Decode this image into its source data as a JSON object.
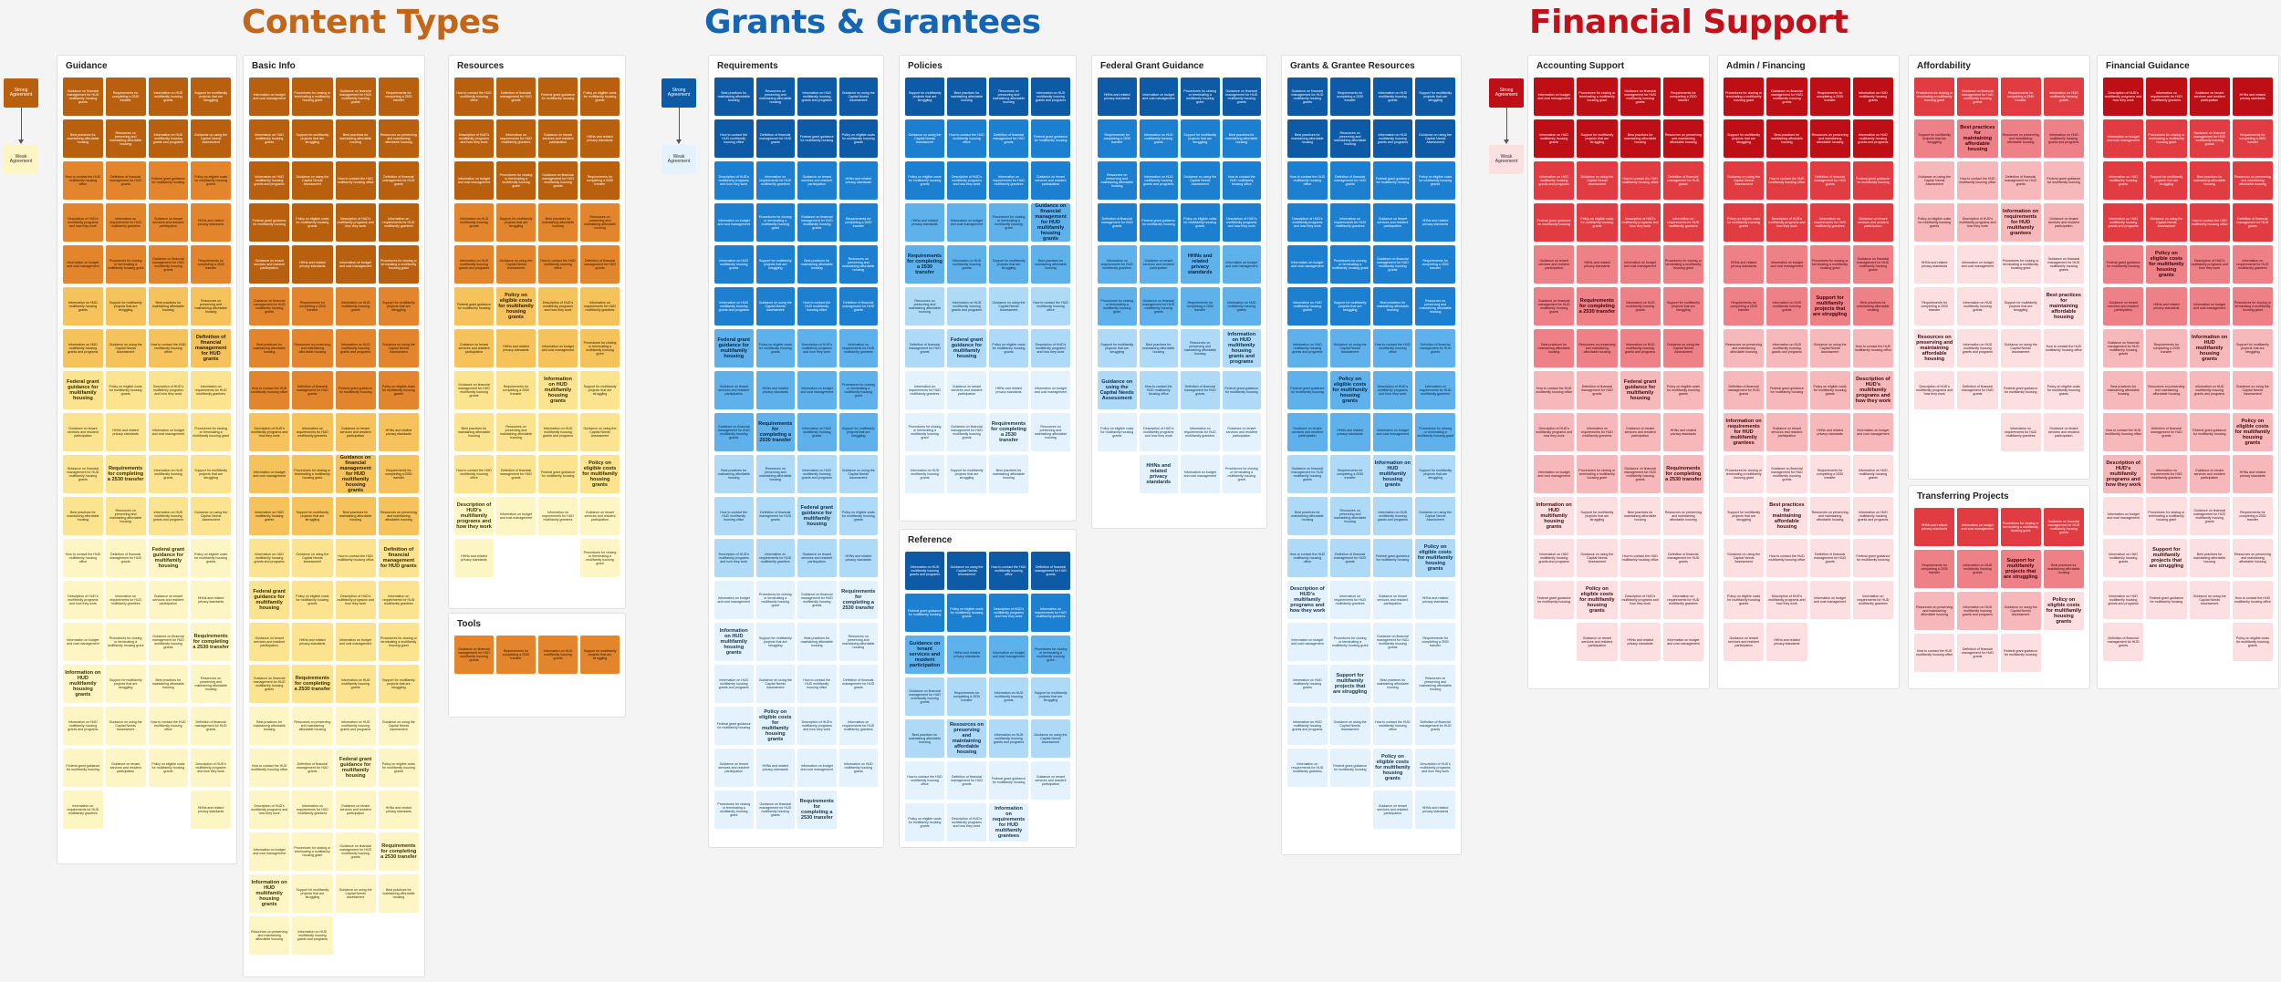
{
  "titles": {
    "content_types": "Content Types",
    "grants": "Grants & Grantees",
    "financial": "Financial Support"
  },
  "legend": {
    "strong": "Strong Agreement",
    "weak": "Weak Agreement"
  },
  "colors": {
    "orange": "#c2661a",
    "blue": "#1565b2",
    "red": "#c1111b"
  },
  "notes": [
    "Guidance on financial management for HUD multifamily housing grants",
    "Requirements for completing a 2530 transfer",
    "Information on HUD multifamily housing grants",
    "Support for multifamily projects that are struggling",
    "Best practices for maintaining affordable housing",
    "Resources on preserving and maintaining affordable housing",
    "Information on HUD multifamily housing grants and programs",
    "Guidance on using the Capital Needs Assessment",
    "How to contact the HUD multifamily housing office",
    "Definition of financial management for HUD grants",
    "Federal grant guidance for multifamily housing",
    "Policy on eligible costs for multifamily housing grants",
    "Description of HUD's multifamily programs and how they work",
    "Information on requirements for HUD multifamily grantees",
    "Guidance on tenant services and resident participation",
    "HHNs and related privacy standards",
    "Information on budget and cost management",
    "Procedures for closing or terminating a multifamily housing grant"
  ],
  "panels": [
    {
      "title": "Guidance"
    },
    {
      "title": "Basic Info"
    },
    {
      "title": "Resources"
    },
    {
      "title": "Tools"
    },
    {
      "title": "Requirements"
    },
    {
      "title": "Policies"
    },
    {
      "title": "Reference"
    },
    {
      "title": "Federal Grant Guidance"
    },
    {
      "title": "Grants & Grantee Resources"
    },
    {
      "title": "Accounting Support"
    },
    {
      "title": "Admin / Financing"
    },
    {
      "title": "Affordability"
    },
    {
      "title": "Transferring Projects"
    },
    {
      "title": "Financial Guidance"
    }
  ]
}
